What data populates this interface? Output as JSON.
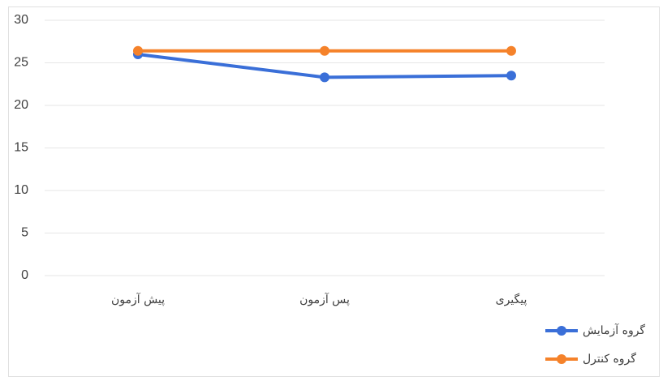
{
  "chart_data": {
    "type": "line",
    "categories": [
      "پیش آزمون",
      "پس آزمون",
      "پیگیری"
    ],
    "series": [
      {
        "name": "گروه آزمایش",
        "color": "#3a6fd8",
        "values": [
          26,
          23.3,
          23.5
        ]
      },
      {
        "name": "گروه کنترل",
        "color": "#f5822a",
        "values": [
          26.4,
          26.4,
          26.4
        ]
      }
    ],
    "ylim": [
      0,
      30
    ],
    "yticks": [
      0,
      5,
      10,
      15,
      20,
      25,
      30
    ],
    "grid": true,
    "legend": "bottom-right"
  }
}
